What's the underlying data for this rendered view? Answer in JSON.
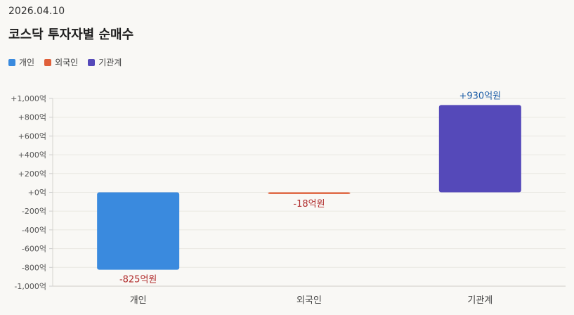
{
  "header": {
    "date": "2026.04.10",
    "title": "코스닥 투자자별 순매수"
  },
  "chart_data": {
    "type": "bar",
    "categories": [
      "개인",
      "외국인",
      "기관계"
    ],
    "values": [
      -825,
      -18,
      930
    ],
    "data_labels": [
      "-825억원",
      "-18억원",
      "+930억원"
    ],
    "colors": [
      "#3a8ade",
      "#e0603a",
      "#5549b9"
    ],
    "legend": [
      "개인",
      "외국인",
      "기관계"
    ],
    "legend_placement": "top-left",
    "ylim": [
      -1000,
      1000
    ],
    "yticks": [
      1000,
      800,
      600,
      400,
      200,
      0,
      -200,
      -400,
      -600,
      -800,
      -1000
    ],
    "ytick_labels": [
      "+1,000억",
      "+800억",
      "+600억",
      "+400억",
      "+200억",
      "+0억",
      "-200억",
      "-400억",
      "-600억",
      "-800억",
      "-1,000억"
    ],
    "grid": true,
    "label_colors": {
      "positive": "#1f5fa8",
      "negative": "#b02a2a"
    }
  }
}
